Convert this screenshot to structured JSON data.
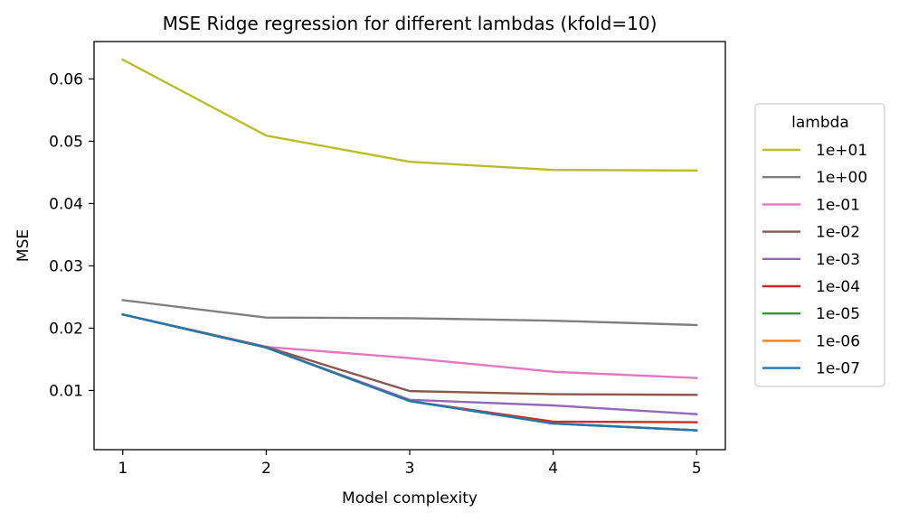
{
  "chart_data": {
    "type": "line",
    "title": "MSE Ridge regression for different lambdas (kfold=10)",
    "xlabel": "Model complexity",
    "ylabel": "MSE",
    "x": [
      1,
      2,
      3,
      4,
      5
    ],
    "xticks": [
      "1",
      "2",
      "3",
      "4",
      "5"
    ],
    "xlim": [
      0.8,
      5.2
    ],
    "yticks": [
      0.01,
      0.02,
      0.03,
      0.04,
      0.05,
      0.06
    ],
    "ytick_labels": [
      "0.01",
      "0.02",
      "0.03",
      "0.04",
      "0.05",
      "0.06"
    ],
    "ylim": [
      0.0005,
      0.066
    ],
    "grid": false,
    "legend": {
      "title": "lambda",
      "placement": "right, outside plot"
    },
    "series": [
      {
        "name": "1e+01",
        "color": "#bcbd22",
        "values": [
          0.0631,
          0.0509,
          0.0467,
          0.0454,
          0.0453
        ]
      },
      {
        "name": "1e+00",
        "color": "#7f7f7f",
        "values": [
          0.0245,
          0.0217,
          0.0216,
          0.0212,
          0.0205
        ]
      },
      {
        "name": "1e-01",
        "color": "#e377c2",
        "values": [
          0.0222,
          0.017,
          0.0152,
          0.013,
          0.012
        ]
      },
      {
        "name": "1e-02",
        "color": "#8c564b",
        "values": [
          0.0222,
          0.017,
          0.0099,
          0.0094,
          0.0093
        ]
      },
      {
        "name": "1e-03",
        "color": "#9467bd",
        "values": [
          0.0222,
          0.0169,
          0.0085,
          0.0076,
          0.0062
        ]
      },
      {
        "name": "1e-04",
        "color": "#d62728",
        "values": [
          0.0222,
          0.0169,
          0.0083,
          0.005,
          0.0049
        ]
      },
      {
        "name": "1e-05",
        "color": "#2ca02c",
        "values": [
          0.0222,
          0.0169,
          0.0083,
          0.0047,
          0.0036
        ]
      },
      {
        "name": "1e-06",
        "color": "#ff7f0e",
        "values": [
          0.0222,
          0.0169,
          0.0083,
          0.0047,
          0.0036
        ]
      },
      {
        "name": "1e-07",
        "color": "#1f77b4",
        "values": [
          0.0222,
          0.0169,
          0.0083,
          0.0047,
          0.0036
        ]
      }
    ]
  }
}
